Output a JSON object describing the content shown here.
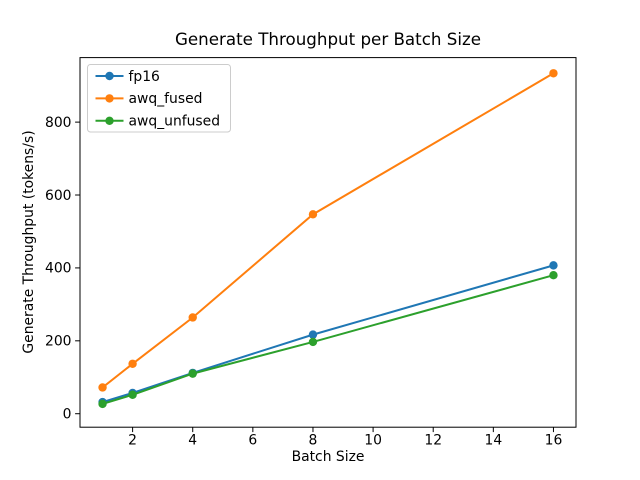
{
  "figure": {
    "background": "#ffffff",
    "text_color": "#000000",
    "spine_color": "#000000",
    "legend_border_color": "#cccccc"
  },
  "chart_data": {
    "type": "line",
    "title": "Generate Throughput per Batch Size",
    "xlabel": "Batch Size",
    "ylabel": "Generate Throughput (tokens/s)",
    "x": [
      1,
      2,
      4,
      8,
      16
    ],
    "series": [
      {
        "name": "fp16",
        "color": "#1f77b4",
        "values": [
          32,
          57,
          112,
          217,
          407
        ]
      },
      {
        "name": "awq_fused",
        "color": "#ff7f0e",
        "values": [
          72,
          137,
          264,
          547,
          934
        ]
      },
      {
        "name": "awq_unfused",
        "color": "#2ca02c",
        "values": [
          27,
          52,
          110,
          197,
          380
        ]
      }
    ],
    "marker": "o",
    "grid": false,
    "legend_position": "upper left",
    "xticks": [
      2,
      4,
      6,
      8,
      10,
      12,
      14,
      16
    ],
    "yticks": [
      0,
      200,
      400,
      600,
      800
    ],
    "xlim": [
      0.25,
      16.75
    ],
    "ylim": [
      -37,
      977
    ]
  }
}
